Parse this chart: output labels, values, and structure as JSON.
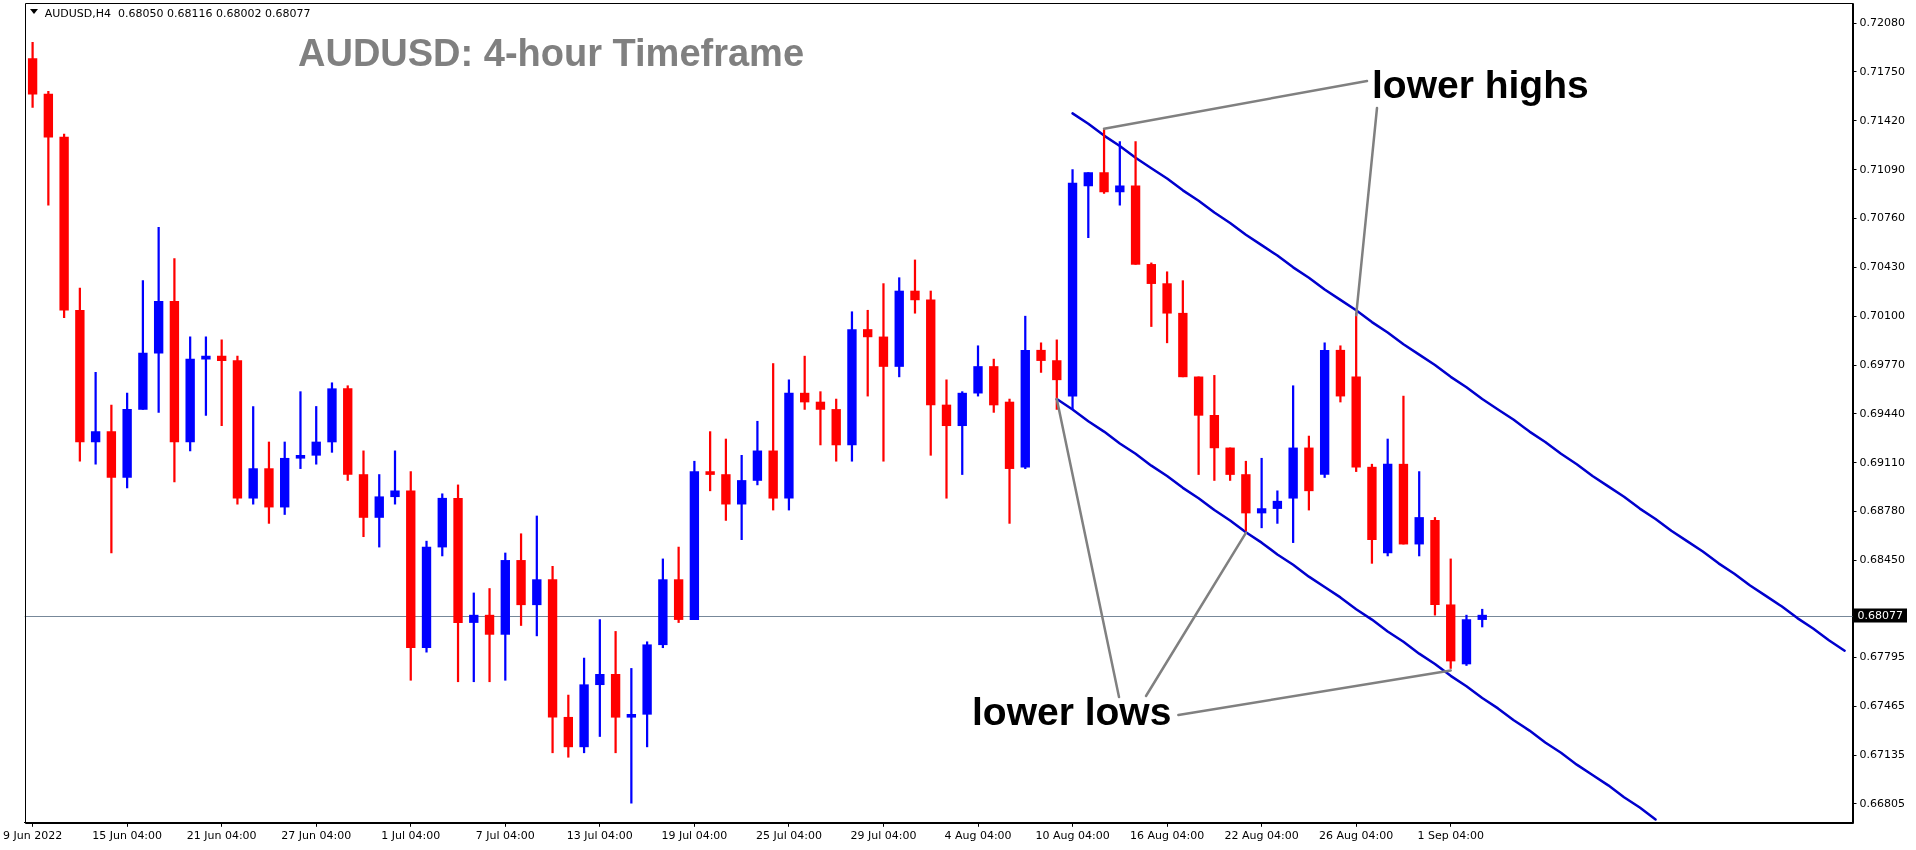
{
  "chart_data": {
    "type": "candlestick",
    "title": "AUDUSD: 4-hour Timeframe",
    "annotations": [
      "AUDUSD,H4  0.68050 0.68116 0.68002 0.68077",
      {
        "text": "lower highs",
        "x": "26 Aug 04:00",
        "y": 0.7012
      },
      {
        "text": "lower lows",
        "x": "1 Sep 04:00",
        "y": 0.6772
      }
    ],
    "categories": [
      "9 Jun 2022",
      null,
      null,
      null,
      null,
      null,
      "15 Jun 04:00",
      null,
      null,
      null,
      null,
      null,
      "21 Jun 04:00",
      null,
      null,
      null,
      null,
      null,
      "27 Jun 04:00",
      null,
      null,
      null,
      null,
      null,
      "1 Jul 04:00",
      null,
      null,
      null,
      null,
      null,
      "7 Jul 04:00",
      null,
      null,
      null,
      null,
      null,
      "13 Jul 04:00",
      null,
      null,
      null,
      null,
      null,
      "19 Jul 04:00",
      null,
      null,
      null,
      null,
      null,
      "25 Jul 04:00",
      null,
      null,
      null,
      null,
      null,
      "29 Jul 04:00",
      null,
      null,
      null,
      null,
      null,
      "4 Aug 04:00",
      null,
      null,
      null,
      null,
      null,
      "10 Aug 04:00",
      null,
      null,
      null,
      null,
      null,
      "16 Aug 04:00",
      null,
      null,
      null,
      null,
      null,
      "22 Aug 04:00",
      null,
      null,
      null,
      null,
      null,
      "26 Aug 04:00",
      null,
      null,
      null,
      null,
      null,
      "1 Sep 04:00",
      null,
      null,
      null,
      null,
      null,
      null,
      null,
      null,
      null,
      null,
      null,
      null,
      null,
      null,
      null,
      null,
      null,
      null,
      null,
      null,
      null,
      null,
      null,
      null,
      null
    ],
    "ylim": [
      0.66677,
      0.72216
    ],
    "yticks": [
      {
        "value": 0.66805,
        "label": "0.66805"
      },
      {
        "value": 0.67135,
        "label": "0.67135"
      },
      {
        "value": 0.67465,
        "label": "0.67465"
      },
      {
        "value": 0.67795,
        "label": "0.67795"
      },
      {
        "value": 0.6812,
        "label": null
      },
      {
        "value": 0.6845,
        "label": "0.68450"
      },
      {
        "value": 0.6878,
        "label": "0.68780"
      },
      {
        "value": 0.6911,
        "label": "0.69110"
      },
      {
        "value": 0.6944,
        "label": "0.69440"
      },
      {
        "value": 0.6977,
        "label": "0.69770"
      },
      {
        "value": 0.701,
        "label": "0.70100"
      },
      {
        "value": 0.7043,
        "label": "0.70430"
      },
      {
        "value": 0.7076,
        "label": "0.70760"
      },
      {
        "value": 0.7109,
        "label": "0.71090"
      },
      {
        "value": 0.7142,
        "label": "0.71420"
      },
      {
        "value": 0.7175,
        "label": "0.71750"
      },
      {
        "value": 0.7208,
        "label": "0.72080"
      }
    ],
    "grid": false,
    "legend": false,
    "ref_lines": [
      {
        "axis": "y",
        "value": 0.68077,
        "label": "0.68077",
        "color": "#778899"
      }
    ],
    "ohlc": [
      [
        0.7184,
        0.7195,
        0.7151,
        0.716
      ],
      [
        0.716,
        0.7162,
        0.7085,
        0.7131
      ],
      [
        0.7131,
        0.7133,
        0.7009,
        0.7014
      ],
      [
        0.7014,
        0.7029,
        0.6912,
        0.6925
      ],
      [
        0.6925,
        0.6972,
        0.691,
        0.6932
      ],
      [
        0.6932,
        0.695,
        0.685,
        0.6901
      ],
      [
        0.6901,
        0.6958,
        0.6894,
        0.6947
      ],
      [
        0.6947,
        0.7034,
        0.6947,
        0.6985
      ],
      [
        0.6985,
        0.707,
        0.6945,
        0.702
      ],
      [
        0.702,
        0.7049,
        0.6898,
        0.6925
      ],
      [
        0.6925,
        0.6996,
        0.6919,
        0.6981
      ],
      [
        0.6981,
        0.6996,
        0.6943,
        0.6983
      ],
      [
        0.6983,
        0.6994,
        0.6936,
        0.698
      ],
      [
        0.698,
        0.6983,
        0.6883,
        0.6887
      ],
      [
        0.6887,
        0.6949,
        0.6883,
        0.6907
      ],
      [
        0.6907,
        0.6925,
        0.687,
        0.6881
      ],
      [
        0.6881,
        0.6925,
        0.6876,
        0.6914
      ],
      [
        0.6914,
        0.6959,
        0.6907,
        0.6916
      ],
      [
        0.6916,
        0.6949,
        0.691,
        0.6925
      ],
      [
        0.6925,
        0.6965,
        0.6918,
        0.6961
      ],
      [
        0.6961,
        0.6963,
        0.6899,
        0.6903
      ],
      [
        0.6903,
        0.6919,
        0.6861,
        0.6874
      ],
      [
        0.6874,
        0.6903,
        0.6854,
        0.6888
      ],
      [
        0.6888,
        0.6919,
        0.6883,
        0.6892
      ],
      [
        0.6892,
        0.6905,
        0.6764,
        0.6786
      ],
      [
        0.6786,
        0.6858,
        0.6783,
        0.6854
      ],
      [
        0.6854,
        0.689,
        0.6848,
        0.6887
      ],
      [
        0.6887,
        0.6896,
        0.6763,
        0.6803
      ],
      [
        0.6803,
        0.6823,
        0.6763,
        0.6808
      ],
      [
        0.6808,
        0.6826,
        0.6763,
        0.6795
      ],
      [
        0.6795,
        0.685,
        0.6764,
        0.6845
      ],
      [
        0.6845,
        0.6863,
        0.6801,
        0.6815
      ],
      [
        0.6815,
        0.6875,
        0.6794,
        0.6832
      ],
      [
        0.6832,
        0.6841,
        0.6715,
        0.6739
      ],
      [
        0.6739,
        0.6754,
        0.6712,
        0.6719
      ],
      [
        0.6719,
        0.6779,
        0.6715,
        0.6761
      ],
      [
        0.6761,
        0.6805,
        0.6726,
        0.6768
      ],
      [
        0.6768,
        0.6797,
        0.6715,
        0.6739
      ],
      [
        0.6739,
        0.6772,
        0.6681,
        0.6741
      ],
      [
        0.6741,
        0.679,
        0.6719,
        0.6788
      ],
      [
        0.6788,
        0.6846,
        0.6786,
        0.6832
      ],
      [
        0.6832,
        0.6854,
        0.6803,
        0.6805
      ],
      [
        0.6805,
        0.6912,
        0.6805,
        0.6905
      ],
      [
        0.6905,
        0.6932,
        0.6892,
        0.6903
      ],
      [
        0.6903,
        0.6927,
        0.6872,
        0.6883
      ],
      [
        0.6883,
        0.6916,
        0.6859,
        0.6899
      ],
      [
        0.6899,
        0.6939,
        0.6896,
        0.6919
      ],
      [
        0.6919,
        0.6978,
        0.6879,
        0.6887
      ],
      [
        0.6887,
        0.6967,
        0.6879,
        0.6958
      ],
      [
        0.6958,
        0.6983,
        0.6947,
        0.6952
      ],
      [
        0.6952,
        0.6959,
        0.6923,
        0.6947
      ],
      [
        0.6947,
        0.6954,
        0.6912,
        0.6923
      ],
      [
        0.6923,
        0.7013,
        0.6912,
        0.7001
      ],
      [
        0.7001,
        0.7014,
        0.6956,
        0.6996
      ],
      [
        0.6996,
        0.7032,
        0.6912,
        0.6976
      ],
      [
        0.6976,
        0.7036,
        0.6969,
        0.7027
      ],
      [
        0.7027,
        0.7048,
        0.7012,
        0.7021
      ],
      [
        0.7021,
        0.7027,
        0.6916,
        0.695
      ],
      [
        0.695,
        0.6967,
        0.6887,
        0.6936
      ],
      [
        0.6936,
        0.6959,
        0.6903,
        0.6958
      ],
      [
        0.6958,
        0.699,
        0.6956,
        0.6976
      ],
      [
        0.6976,
        0.6981,
        0.6945,
        0.695
      ],
      [
        0.6952,
        0.6954,
        0.687,
        0.6907
      ],
      [
        0.6908,
        0.701,
        0.6907,
        0.6987
      ],
      [
        0.6987,
        0.6992,
        0.6972,
        0.698
      ],
      [
        0.698,
        0.6994,
        0.6947,
        0.6967
      ],
      [
        0.6956,
        0.7109,
        0.6947,
        0.71
      ],
      [
        0.7098,
        0.7107,
        0.7063,
        0.7107
      ],
      [
        0.7107,
        0.7136,
        0.7093,
        0.7094
      ],
      [
        0.7094,
        0.7128,
        0.7085,
        0.7098
      ],
      [
        0.7098,
        0.7128,
        0.7045,
        0.7045
      ],
      [
        0.7045,
        0.7046,
        0.7003,
        0.7032
      ],
      [
        0.7032,
        0.704,
        0.6992,
        0.7012
      ],
      [
        0.7012,
        0.7034,
        0.6969,
        0.6969
      ],
      [
        0.6969,
        0.6969,
        0.6903,
        0.6943
      ],
      [
        0.6943,
        0.697,
        0.6899,
        0.6921
      ],
      [
        0.6921,
        0.6921,
        0.6899,
        0.6903
      ],
      [
        0.6903,
        0.6912,
        0.6865,
        0.6877
      ],
      [
        0.6877,
        0.6914,
        0.6867,
        0.688
      ],
      [
        0.688,
        0.6892,
        0.687,
        0.6885
      ],
      [
        0.6887,
        0.6963,
        0.6857,
        0.6921
      ],
      [
        0.6921,
        0.6929,
        0.6879,
        0.6892
      ],
      [
        0.6903,
        0.6992,
        0.6901,
        0.6987
      ],
      [
        0.6987,
        0.699,
        0.6952,
        0.6956
      ],
      [
        0.6969,
        0.7012,
        0.6905,
        0.6908
      ],
      [
        0.6908,
        0.691,
        0.6843,
        0.6859
      ],
      [
        0.685,
        0.6927,
        0.6848,
        0.691
      ],
      [
        0.691,
        0.6956,
        0.6856,
        0.6856
      ],
      [
        0.6856,
        0.6905,
        0.6848,
        0.6874
      ],
      [
        0.6872,
        0.6874,
        0.6808,
        0.6815
      ],
      [
        0.6815,
        0.6846,
        0.6772,
        0.6777
      ],
      [
        0.6775,
        0.6808,
        0.6774,
        0.6805
      ],
      [
        0.6805,
        0.6812,
        0.68,
        0.6808
      ],
      null,
      null,
      null,
      null,
      null,
      null,
      null,
      null,
      null,
      null,
      null,
      null,
      null,
      null,
      null,
      null,
      null,
      null,
      null,
      null,
      null,
      null,
      null
    ],
    "colors": [
      "#ff0000",
      "#ff0000",
      "#ff0000",
      "#ff0000",
      "#0000ff",
      "#ff0000",
      "#0000ff",
      "#0000ff",
      "#0000ff",
      "#ff0000",
      "#0000ff",
      "#0000ff",
      "#ff0000",
      "#ff0000",
      "#0000ff",
      "#ff0000",
      "#0000ff",
      "#0000ff",
      "#0000ff",
      "#0000ff",
      "#ff0000",
      "#ff0000",
      "#0000ff",
      "#0000ff",
      "#ff0000",
      "#0000ff",
      "#0000ff",
      "#ff0000",
      "#0000ff",
      "#ff0000",
      "#0000ff",
      "#ff0000",
      "#0000ff",
      "#ff0000",
      "#ff0000",
      "#0000ff",
      "#0000ff",
      "#ff0000",
      "#0000ff",
      "#0000ff",
      "#0000ff",
      "#ff0000",
      "#0000ff",
      "#ff0000",
      "#ff0000",
      "#0000ff",
      "#0000ff",
      "#ff0000",
      "#0000ff",
      "#ff0000",
      "#ff0000",
      "#ff0000",
      "#0000ff",
      "#ff0000",
      "#ff0000",
      "#0000ff",
      "#ff0000",
      "#ff0000",
      "#ff0000",
      "#0000ff",
      "#0000ff",
      "#ff0000",
      "#ff0000",
      "#0000ff",
      "#ff0000",
      "#ff0000",
      "#0000ff",
      "#0000ff",
      "#ff0000",
      "#0000ff",
      "#ff0000",
      "#ff0000",
      "#ff0000",
      "#ff0000",
      "#ff0000",
      "#ff0000",
      "#ff0000",
      "#ff0000",
      "#0000ff",
      "#0000ff",
      "#0000ff",
      "#ff0000",
      "#0000ff",
      "#ff0000",
      "#ff0000",
      "#ff0000",
      "#0000ff",
      "#ff0000",
      "#0000ff",
      "#ff0000",
      "#ff0000",
      "#0000ff",
      "#0000ff",
      null,
      null,
      null,
      null,
      null,
      null,
      null,
      null,
      null,
      null,
      null,
      null,
      null,
      null,
      null,
      null,
      null,
      null,
      null,
      null,
      null,
      null,
      null
    ],
    "series": [
      {
        "type": "line",
        "color": "#0000cd",
        "values": [
          null,
          null,
          null,
          null,
          null,
          null,
          null,
          null,
          null,
          null,
          null,
          null,
          null,
          null,
          null,
          null,
          null,
          null,
          null,
          null,
          null,
          null,
          null,
          null,
          null,
          null,
          null,
          null,
          null,
          null,
          null,
          null,
          null,
          null,
          null,
          null,
          null,
          null,
          null,
          null,
          null,
          null,
          null,
          null,
          null,
          null,
          null,
          null,
          null,
          null,
          null,
          null,
          null,
          null,
          null,
          null,
          null,
          null,
          null,
          null,
          null,
          null,
          null,
          null,
          null,
          null,
          0.7147,
          0.714,
          0.7132,
          0.7125,
          0.7117,
          0.711,
          0.7103,
          0.7095,
          0.7088,
          0.708,
          0.7073,
          0.7065,
          0.7058,
          0.7051,
          0.7043,
          0.7036,
          0.7028,
          0.7021,
          0.7014,
          0.7006,
          0.6999,
          0.6991,
          0.6984,
          0.6977,
          0.6969,
          0.6962,
          0.6954,
          0.6947,
          0.694,
          0.6932,
          0.6925,
          0.6917,
          0.691,
          0.6902,
          0.6895,
          0.6888,
          0.688,
          0.6873,
          0.6865,
          0.6858,
          0.6851,
          0.6843,
          0.6836,
          0.6828,
          0.6821,
          0.6814,
          0.6806,
          0.6799,
          0.6791,
          0.6784
        ]
      },
      {
        "type": "line",
        "color": "#0000cd",
        "values": [
          null,
          null,
          null,
          null,
          null,
          null,
          null,
          null,
          null,
          null,
          null,
          null,
          null,
          null,
          null,
          null,
          null,
          null,
          null,
          null,
          null,
          null,
          null,
          null,
          null,
          null,
          null,
          null,
          null,
          null,
          null,
          null,
          null,
          null,
          null,
          null,
          null,
          null,
          null,
          null,
          null,
          null,
          null,
          null,
          null,
          null,
          null,
          null,
          null,
          null,
          null,
          null,
          null,
          null,
          null,
          null,
          null,
          null,
          null,
          null,
          null,
          null,
          null,
          null,
          null,
          0.6954,
          0.6947,
          0.6939,
          0.6932,
          0.6924,
          0.6917,
          0.6909,
          0.6902,
          0.6894,
          0.6887,
          0.6879,
          0.6872,
          0.6864,
          0.6857,
          0.6849,
          0.6842,
          0.6834,
          0.6827,
          0.682,
          0.6812,
          0.6805,
          0.6797,
          0.679,
          0.6782,
          0.6775,
          0.6767,
          0.676,
          0.6752,
          0.6745,
          0.6737,
          0.673,
          0.6722,
          0.6715,
          0.6707,
          0.67,
          0.6693,
          0.6685,
          0.6678,
          0.667,
          null,
          null,
          null,
          null,
          null,
          null,
          null,
          null,
          null,
          null,
          null,
          null
        ]
      }
    ]
  }
}
